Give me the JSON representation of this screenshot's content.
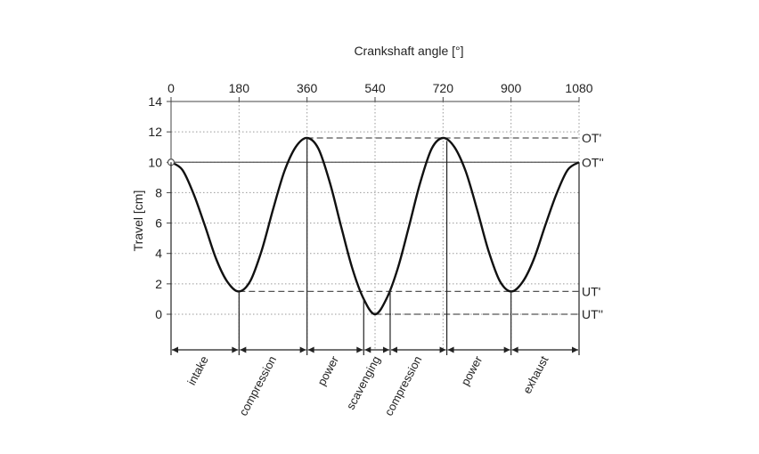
{
  "chart_data": {
    "type": "line",
    "x_axis": {
      "label": "Crankshaft angle [°]",
      "position": "top",
      "range": [
        0,
        1080
      ],
      "ticks": [
        0,
        180,
        360,
        540,
        720,
        900,
        1080
      ]
    },
    "y_axis": {
      "label": "Travel [cm]",
      "range": [
        0,
        14
      ],
      "ticks": [
        0,
        2,
        4,
        6,
        8,
        10,
        12,
        14
      ]
    },
    "grid": true,
    "series": [
      {
        "x": [
          0,
          30,
          60,
          90,
          120,
          150,
          180,
          210,
          240,
          270,
          300,
          330,
          360,
          390,
          420,
          450,
          480,
          510,
          540,
          570,
          600,
          630,
          660,
          690,
          720,
          750,
          780,
          810,
          840,
          870,
          900,
          930,
          960,
          990,
          1020,
          1050,
          1080
        ],
        "y": [
          10,
          9.5,
          7.9,
          5.8,
          3.6,
          2.1,
          1.5,
          2.2,
          4.2,
          6.9,
          9.4,
          11.0,
          11.6,
          10.9,
          8.7,
          5.8,
          3.0,
          1.0,
          0,
          1.0,
          3.0,
          5.8,
          8.7,
          10.9,
          11.6,
          11.0,
          9.4,
          6.9,
          4.2,
          2.2,
          1.5,
          2.1,
          3.6,
          5.8,
          7.9,
          9.5,
          10
        ]
      }
    ],
    "reference_lines": [
      {
        "label": "OT'",
        "y": 11.6,
        "style": "dashed",
        "from_x": 360
      },
      {
        "label": "OT''",
        "y": 10,
        "style": "solid",
        "from_x": 0
      },
      {
        "label": "UT'",
        "y": 1.5,
        "style": "dashed",
        "from_x": 180
      },
      {
        "label": "UT''",
        "y": 0,
        "style": "dashed",
        "from_x": 540
      }
    ],
    "phase_boundaries": [
      0,
      180,
      360,
      510,
      580,
      730,
      900,
      1080
    ],
    "phases": [
      {
        "label": "intake",
        "from": 0,
        "to": 180
      },
      {
        "label": "compression",
        "from": 180,
        "to": 360
      },
      {
        "label": "power",
        "from": 360,
        "to": 510
      },
      {
        "label": "scavenging",
        "from": 510,
        "to": 580
      },
      {
        "label": "compression",
        "from": 580,
        "to": 730
      },
      {
        "label": "power",
        "from": 730,
        "to": 900
      },
      {
        "label": "exhaust",
        "from": 900,
        "to": 1080
      }
    ]
  }
}
